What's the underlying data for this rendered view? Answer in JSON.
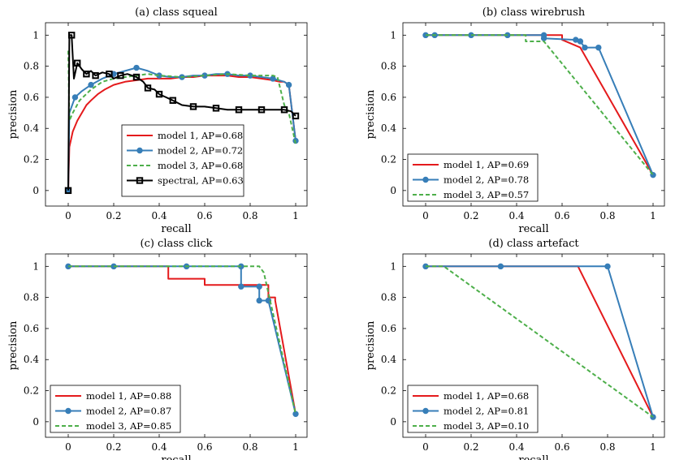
{
  "figure": {
    "colors": {
      "model1": "#e41a1c",
      "model2": "#377eb8",
      "model3": "#4daf4a",
      "spectral": "#000000"
    }
  },
  "chart_data": [
    {
      "type": "line",
      "title": "(a) class squeal",
      "xlabel": "recall",
      "ylabel": "precision",
      "xlim": [
        -0.1,
        1.05
      ],
      "ylim": [
        -0.1,
        1.08
      ],
      "xticks": [
        "0",
        "0.2",
        "0.4",
        "0.6",
        "0.8",
        "1"
      ],
      "yticks": [
        "0",
        "0.2",
        "0.4",
        "0.6",
        "0.8",
        "1"
      ],
      "legend_position": "lower-center",
      "series": [
        {
          "name": "model 1, AP=0.68",
          "style": "solid-red",
          "x": [
            0,
            0.005,
            0.02,
            0.04,
            0.06,
            0.08,
            0.1,
            0.13,
            0.16,
            0.2,
            0.25,
            0.3,
            0.35,
            0.4,
            0.45,
            0.5,
            0.55,
            0.6,
            0.65,
            0.7,
            0.75,
            0.8,
            0.85,
            0.9,
            0.93,
            0.95,
            0.97,
            1.0
          ],
          "y": [
            0,
            0.28,
            0.38,
            0.45,
            0.5,
            0.55,
            0.58,
            0.62,
            0.65,
            0.68,
            0.7,
            0.71,
            0.72,
            0.72,
            0.72,
            0.73,
            0.73,
            0.74,
            0.74,
            0.74,
            0.73,
            0.73,
            0.72,
            0.71,
            0.7,
            0.7,
            0.68,
            0.32
          ]
        },
        {
          "name": "model 2, AP=0.72",
          "style": "solid-blue-markers",
          "x": [
            0,
            0.005,
            0.03,
            0.06,
            0.1,
            0.15,
            0.2,
            0.25,
            0.3,
            0.35,
            0.4,
            0.45,
            0.5,
            0.55,
            0.6,
            0.65,
            0.7,
            0.75,
            0.8,
            0.85,
            0.9,
            0.95,
            0.97,
            1.0
          ],
          "y": [
            0,
            0.5,
            0.6,
            0.64,
            0.68,
            0.72,
            0.75,
            0.77,
            0.79,
            0.77,
            0.74,
            0.73,
            0.73,
            0.74,
            0.74,
            0.75,
            0.75,
            0.74,
            0.74,
            0.73,
            0.72,
            0.7,
            0.68,
            0.32
          ]
        },
        {
          "name": "model 3, AP=0.68",
          "style": "dashed-green",
          "x": [
            0,
            0.005,
            0.02,
            0.05,
            0.1,
            0.15,
            0.2,
            0.25,
            0.3,
            0.35,
            0.4,
            0.5,
            0.6,
            0.7,
            0.8,
            0.9,
            0.92,
            0.95,
            0.97,
            1.0
          ],
          "y": [
            0.9,
            0.45,
            0.5,
            0.58,
            0.65,
            0.7,
            0.72,
            0.73,
            0.74,
            0.75,
            0.74,
            0.73,
            0.74,
            0.75,
            0.74,
            0.74,
            0.73,
            0.55,
            0.5,
            0.3
          ]
        },
        {
          "name": "spectral, AP=0.63",
          "style": "solid-black-squares",
          "x": [
            0,
            0.005,
            0.015,
            0.025,
            0.04,
            0.06,
            0.08,
            0.1,
            0.12,
            0.15,
            0.18,
            0.2,
            0.23,
            0.26,
            0.3,
            0.33,
            0.35,
            0.38,
            0.4,
            0.43,
            0.46,
            0.5,
            0.55,
            0.6,
            0.65,
            0.7,
            0.75,
            0.8,
            0.85,
            0.9,
            0.95,
            0.98,
            1.0
          ],
          "y": [
            0,
            1.0,
            1.0,
            0.72,
            0.82,
            0.78,
            0.75,
            0.77,
            0.74,
            0.76,
            0.75,
            0.72,
            0.74,
            0.75,
            0.73,
            0.7,
            0.66,
            0.65,
            0.62,
            0.6,
            0.58,
            0.55,
            0.54,
            0.54,
            0.53,
            0.52,
            0.52,
            0.52,
            0.52,
            0.52,
            0.52,
            0.51,
            0.48
          ]
        }
      ]
    },
    {
      "type": "line",
      "title": "(b) class wirebrush",
      "xlabel": "recall",
      "ylabel": "precision",
      "xlim": [
        -0.1,
        1.05
      ],
      "ylim": [
        -0.1,
        1.08
      ],
      "xticks": [
        "0",
        "0.2",
        "0.4",
        "0.6",
        "0.8",
        "1"
      ],
      "yticks": [
        "0",
        "0.2",
        "0.4",
        "0.6",
        "0.8",
        "1"
      ],
      "legend_position": "lower-left",
      "series": [
        {
          "name": "model 1, AP=0.69",
          "style": "solid-red",
          "x": [
            0,
            0.6,
            0.6,
            0.68,
            1.0
          ],
          "y": [
            1.0,
            1.0,
            0.97,
            0.92,
            0.1
          ]
        },
        {
          "name": "model 2, AP=0.78",
          "style": "solid-blue-markers",
          "x": [
            0,
            0.04,
            0.2,
            0.36,
            0.52,
            0.52,
            0.66,
            0.68,
            0.7,
            0.76,
            1.0
          ],
          "y": [
            1.0,
            1.0,
            1.0,
            1.0,
            1.0,
            0.98,
            0.97,
            0.96,
            0.92,
            0.92,
            0.1
          ]
        },
        {
          "name": "model 3, AP=0.57",
          "style": "dashed-green",
          "x": [
            0,
            0.44,
            0.44,
            0.52,
            1.0
          ],
          "y": [
            1.0,
            1.0,
            0.96,
            0.96,
            0.1
          ]
        }
      ]
    },
    {
      "type": "line",
      "title": "(c) class click",
      "xlabel": "recall",
      "ylabel": "precision",
      "xlim": [
        -0.1,
        1.05
      ],
      "ylim": [
        -0.1,
        1.08
      ],
      "xticks": [
        "0",
        "0.2",
        "0.4",
        "0.6",
        "0.8",
        "1"
      ],
      "yticks": [
        "0",
        "0.2",
        "0.4",
        "0.6",
        "0.8",
        "1"
      ],
      "legend_position": "lower-left",
      "series": [
        {
          "name": "model 1, AP=0.88",
          "style": "solid-red",
          "x": [
            0,
            0.44,
            0.44,
            0.6,
            0.6,
            0.84,
            0.84,
            0.88,
            0.88,
            0.91,
            0.91,
            1.0
          ],
          "y": [
            1.0,
            1.0,
            0.92,
            0.92,
            0.88,
            0.88,
            0.88,
            0.88,
            0.8,
            0.8,
            0.78,
            0.05
          ]
        },
        {
          "name": "model 2, AP=0.87",
          "style": "solid-blue-markers",
          "x": [
            0,
            0.2,
            0.52,
            0.76,
            0.76,
            0.84,
            0.84,
            0.88,
            1.0
          ],
          "y": [
            1.0,
            1.0,
            1.0,
            1.0,
            0.87,
            0.87,
            0.78,
            0.78,
            0.05
          ]
        },
        {
          "name": "model 3, AP=0.85",
          "style": "dashed-green",
          "x": [
            0,
            0.84,
            0.86,
            1.0
          ],
          "y": [
            1.0,
            1.0,
            0.96,
            0.05
          ]
        }
      ]
    },
    {
      "type": "line",
      "title": "(d) class artefact",
      "xlabel": "recall",
      "ylabel": "precision",
      "xlim": [
        -0.1,
        1.05
      ],
      "ylim": [
        -0.1,
        1.08
      ],
      "xticks": [
        "0",
        "0.2",
        "0.4",
        "0.6",
        "0.8",
        "1"
      ],
      "yticks": [
        "0",
        "0.2",
        "0.4",
        "0.6",
        "0.8",
        "1"
      ],
      "legend_position": "lower-left",
      "series": [
        {
          "name": "model 1, AP=0.68",
          "style": "solid-red",
          "x": [
            0,
            0.67,
            1.0
          ],
          "y": [
            1.0,
            1.0,
            0.03
          ]
        },
        {
          "name": "model 2, AP=0.81",
          "style": "solid-blue-markers",
          "x": [
            0,
            0.33,
            0.8,
            1.0
          ],
          "y": [
            1.0,
            1.0,
            1.0,
            0.03
          ]
        },
        {
          "name": "model 3, AP=0.10",
          "style": "dashed-green",
          "x": [
            0,
            0.08,
            1.0
          ],
          "y": [
            1.0,
            1.0,
            0.03
          ]
        }
      ]
    }
  ]
}
